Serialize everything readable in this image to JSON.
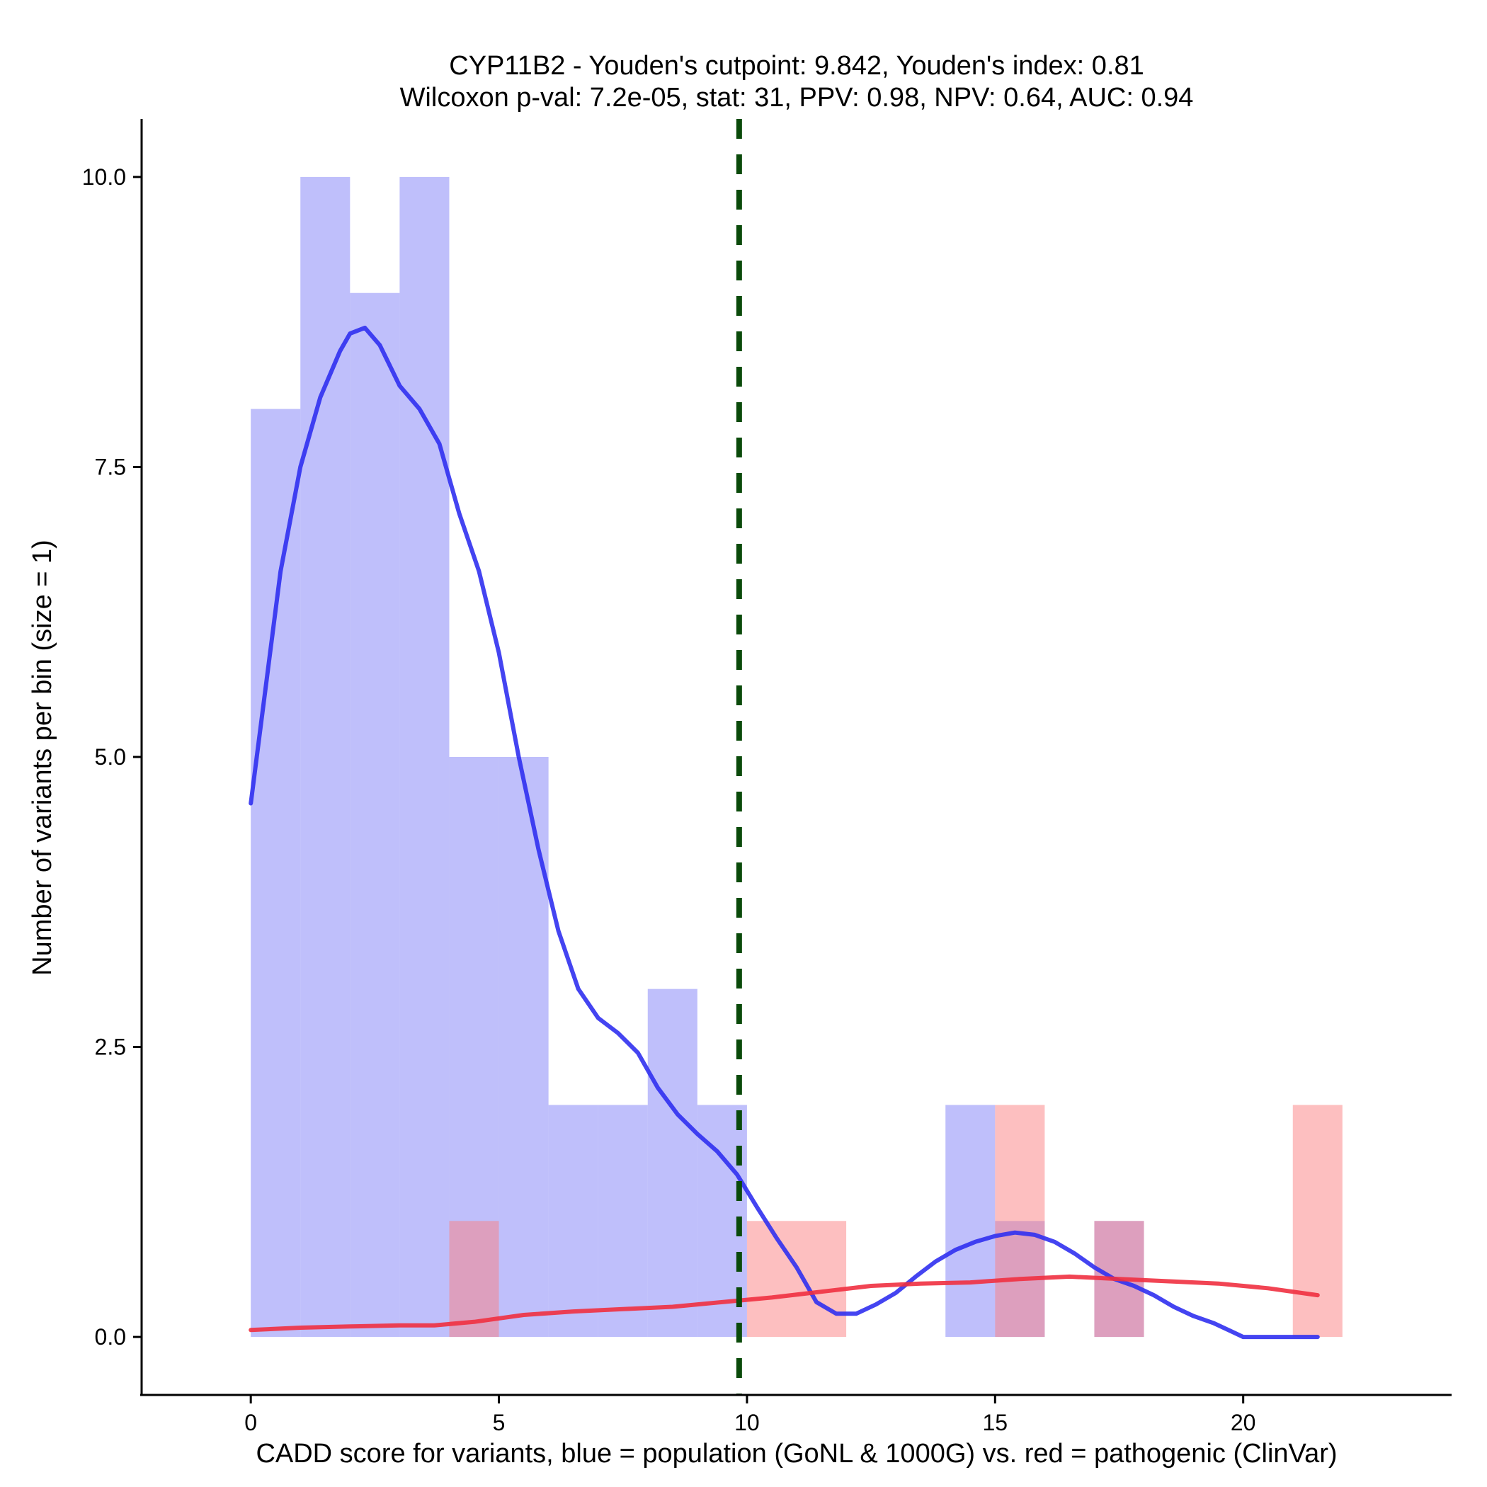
{
  "chart_data": {
    "type": "histogram",
    "title_line1": "CYP11B2 - Youden's cutpoint: 9.842, Youden's index: 0.81",
    "title_line2": "Wilcoxon p-val: 7.2e-05, stat: 31, PPV: 0.98, NPV: 0.64, AUC: 0.94",
    "xlabel": "CADD score for variants, blue = population (GoNL & 1000G) vs. red = pathogenic (ClinVar)",
    "ylabel": "Number of variants per bin (size = 1)",
    "xlim": [
      -2.2,
      24.2
    ],
    "ylim": [
      -0.5,
      10.5
    ],
    "x_ticks": [
      0,
      5,
      10,
      15,
      20
    ],
    "x_tick_labels": [
      "0",
      "5",
      "10",
      "15",
      "20"
    ],
    "y_ticks": [
      0,
      2.5,
      5,
      7.5,
      10
    ],
    "y_tick_labels": [
      "0.0",
      "2.5",
      "5.0",
      "7.5",
      "10.0"
    ],
    "bin_size": 1,
    "cutpoint": 9.842,
    "series": [
      {
        "name": "population (GoNL & 1000G)",
        "color": "#8080f8",
        "bins": [
          [
            0,
            8
          ],
          [
            1,
            10
          ],
          [
            2,
            9
          ],
          [
            3,
            10
          ],
          [
            4,
            5
          ],
          [
            5,
            5
          ],
          [
            6,
            2
          ],
          [
            7,
            2
          ],
          [
            8,
            3
          ],
          [
            9,
            2
          ],
          [
            14,
            2
          ],
          [
            15,
            1
          ],
          [
            17,
            1
          ]
        ]
      },
      {
        "name": "pathogenic (ClinVar)",
        "color": "#fc8082",
        "bins": [
          [
            4,
            1
          ],
          [
            10,
            1
          ],
          [
            11,
            1
          ],
          [
            15,
            2
          ],
          [
            17,
            1
          ],
          [
            21,
            2
          ]
        ]
      }
    ],
    "density_curves": [
      {
        "name": "population density",
        "color": "#3030f0",
        "points": [
          [
            0,
            4.6
          ],
          [
            0.3,
            5.6
          ],
          [
            0.6,
            6.6
          ],
          [
            1.0,
            7.5
          ],
          [
            1.4,
            8.1
          ],
          [
            1.8,
            8.5
          ],
          [
            2.0,
            8.65
          ],
          [
            2.3,
            8.7
          ],
          [
            2.6,
            8.55
          ],
          [
            3.0,
            8.2
          ],
          [
            3.4,
            8.0
          ],
          [
            3.8,
            7.7
          ],
          [
            4.2,
            7.1
          ],
          [
            4.6,
            6.6
          ],
          [
            5.0,
            5.9
          ],
          [
            5.4,
            5.0
          ],
          [
            5.8,
            4.2
          ],
          [
            6.2,
            3.5
          ],
          [
            6.6,
            3.0
          ],
          [
            7.0,
            2.75
          ],
          [
            7.4,
            2.62
          ],
          [
            7.8,
            2.45
          ],
          [
            8.2,
            2.15
          ],
          [
            8.6,
            1.92
          ],
          [
            9.0,
            1.75
          ],
          [
            9.4,
            1.6
          ],
          [
            9.8,
            1.4
          ],
          [
            10.2,
            1.12
          ],
          [
            10.6,
            0.85
          ],
          [
            11.0,
            0.6
          ],
          [
            11.4,
            0.3
          ],
          [
            11.8,
            0.2
          ],
          [
            12.2,
            0.2
          ],
          [
            12.6,
            0.28
          ],
          [
            13.0,
            0.38
          ],
          [
            13.4,
            0.52
          ],
          [
            13.8,
            0.65
          ],
          [
            14.2,
            0.75
          ],
          [
            14.6,
            0.82
          ],
          [
            15.0,
            0.87
          ],
          [
            15.4,
            0.9
          ],
          [
            15.8,
            0.88
          ],
          [
            16.2,
            0.82
          ],
          [
            16.6,
            0.72
          ],
          [
            17.0,
            0.6
          ],
          [
            17.4,
            0.5
          ],
          [
            17.8,
            0.44
          ],
          [
            18.2,
            0.36
          ],
          [
            18.6,
            0.26
          ],
          [
            19.0,
            0.18
          ],
          [
            19.4,
            0.12
          ],
          [
            19.8,
            0.04
          ],
          [
            20.0,
            0.0
          ],
          [
            21.5,
            0.0
          ]
        ]
      },
      {
        "name": "pathogenic density",
        "color": "#f03040",
        "points": [
          [
            0,
            0.06
          ],
          [
            1,
            0.08
          ],
          [
            2,
            0.09
          ],
          [
            3,
            0.1
          ],
          [
            3.7,
            0.1
          ],
          [
            4.5,
            0.13
          ],
          [
            5.5,
            0.19
          ],
          [
            6.5,
            0.22
          ],
          [
            7.5,
            0.24
          ],
          [
            8.5,
            0.26
          ],
          [
            9.5,
            0.3
          ],
          [
            10.5,
            0.34
          ],
          [
            11.5,
            0.39
          ],
          [
            12.5,
            0.44
          ],
          [
            13.5,
            0.46
          ],
          [
            14.5,
            0.47
          ],
          [
            15.5,
            0.5
          ],
          [
            16.5,
            0.52
          ],
          [
            17.5,
            0.5
          ],
          [
            18.5,
            0.48
          ],
          [
            19.5,
            0.46
          ],
          [
            20.5,
            0.42
          ],
          [
            21.5,
            0.36
          ]
        ]
      }
    ],
    "legend": "none",
    "grid": false
  }
}
